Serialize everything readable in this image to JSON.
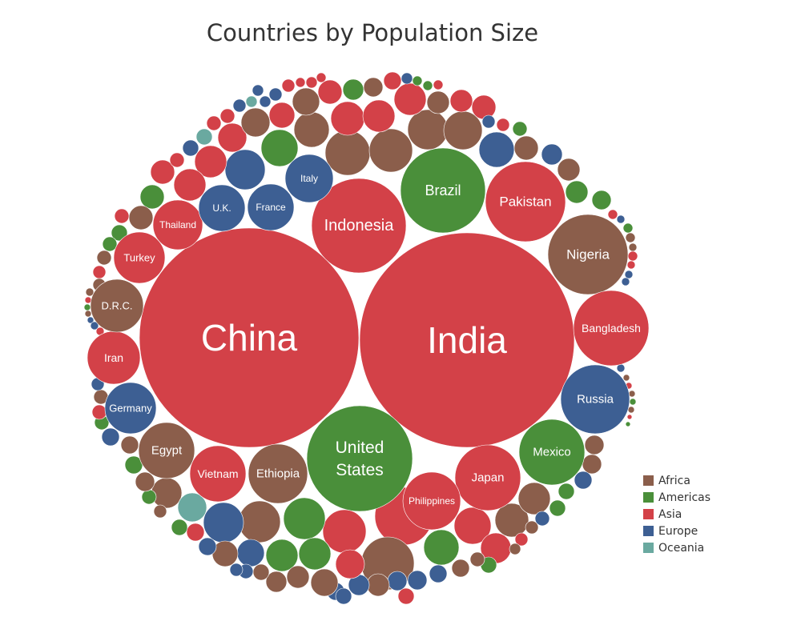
{
  "title": "Countries by Population Size",
  "chart_data": {
    "type": "bubble",
    "title": "Countries by Population Size",
    "legend_position": "bottom-right",
    "regions": [
      {
        "name": "Africa",
        "color": "#8b5e4b"
      },
      {
        "name": "Americas",
        "color": "#4a8f3a"
      },
      {
        "name": "Asia",
        "color": "#d34148"
      },
      {
        "name": "Europe",
        "color": "#3d5f93"
      },
      {
        "name": "Oceania",
        "color": "#6aa9a0"
      }
    ],
    "labeled": [
      {
        "label": "China",
        "region": "Asia"
      },
      {
        "label": "India",
        "region": "Asia"
      },
      {
        "label": "United States",
        "region": "Americas"
      },
      {
        "label": "Indonesia",
        "region": "Asia"
      },
      {
        "label": "Brazil",
        "region": "Americas"
      },
      {
        "label": "Pakistan",
        "region": "Asia"
      },
      {
        "label": "Nigeria",
        "region": "Africa"
      },
      {
        "label": "Bangladesh",
        "region": "Asia"
      },
      {
        "label": "Russia",
        "region": "Europe"
      },
      {
        "label": "Japan",
        "region": "Asia"
      },
      {
        "label": "Mexico",
        "region": "Americas"
      },
      {
        "label": "Philippines",
        "region": "Asia"
      },
      {
        "label": "Ethiopia",
        "region": "Africa"
      },
      {
        "label": "Vietnam",
        "region": "Asia"
      },
      {
        "label": "Egypt",
        "region": "Africa"
      },
      {
        "label": "Germany",
        "region": "Europe"
      },
      {
        "label": "Iran",
        "region": "Asia"
      },
      {
        "label": "D.R.C.",
        "region": "Africa"
      },
      {
        "label": "Turkey",
        "region": "Asia"
      },
      {
        "label": "Thailand",
        "region": "Asia"
      },
      {
        "label": "U.K.",
        "region": "Europe"
      },
      {
        "label": "France",
        "region": "Europe"
      },
      {
        "label": "Italy",
        "region": "Europe"
      }
    ]
  }
}
